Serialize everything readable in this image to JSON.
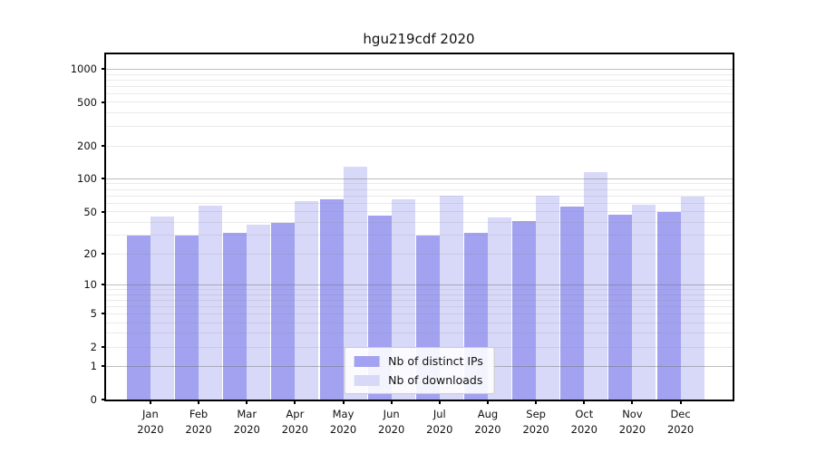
{
  "title": "hgu219cdf 2020",
  "colors": {
    "distinct_ips": "#a2a2f0",
    "downloads": "#d8d8f8",
    "axis": "#000000",
    "grid_major": "#b5b5b5",
    "grid_minor": "#e9e9e9",
    "legend_border": "#cccccc"
  },
  "legend": {
    "items": [
      {
        "key": "distinct-ips",
        "label": "Nb of distinct IPs",
        "color": "#a2a2f0"
      },
      {
        "key": "downloads",
        "label": "Nb of downloads",
        "color": "#d8d8f8"
      }
    ]
  },
  "chart_data": {
    "type": "bar",
    "title": "hgu219cdf 2020",
    "scale": "log10(1+x)",
    "grid": "on",
    "legend_position": "bottom-center",
    "categories": [
      "Jan 2020",
      "Feb 2020",
      "Mar 2020",
      "Apr 2020",
      "May 2020",
      "Jun 2020",
      "Jul 2020",
      "Aug 2020",
      "Sep 2020",
      "Oct 2020",
      "Nov 2020",
      "Dec 2020"
    ],
    "month_labels": [
      "Jan",
      "Feb",
      "Mar",
      "Apr",
      "May",
      "Jun",
      "Jul",
      "Aug",
      "Sep",
      "Oct",
      "Nov",
      "Dec"
    ],
    "year_label": "2020",
    "series": [
      {
        "name": "Nb of distinct IPs",
        "key": "distinct-ips",
        "color": "#a2a2f0",
        "values": [
          30,
          30,
          32,
          39,
          65,
          46,
          30,
          32,
          41,
          56,
          47,
          50
        ]
      },
      {
        "name": "Nb of downloads",
        "key": "downloads",
        "color": "#d8d8f8",
        "values": [
          45,
          57,
          38,
          63,
          130,
          65,
          70,
          44,
          70,
          116,
          58,
          69
        ]
      }
    ],
    "y_ticks": [
      0,
      1,
      2,
      5,
      10,
      20,
      50,
      100,
      200,
      500,
      1000
    ],
    "ylim": [
      0,
      1350
    ],
    "xlabel": "",
    "ylabel": ""
  }
}
